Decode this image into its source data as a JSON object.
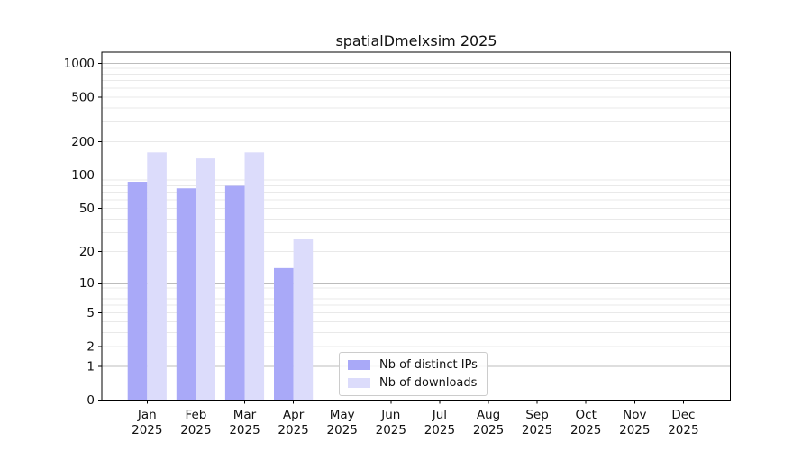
{
  "title": "spatialDmelxsim 2025",
  "chart_data": {
    "type": "bar",
    "title": "spatialDmelxsim 2025",
    "x_months": [
      "Jan",
      "Feb",
      "Mar",
      "Apr",
      "May",
      "Jun",
      "Jul",
      "Aug",
      "Sep",
      "Oct",
      "Nov",
      "Dec"
    ],
    "x_year": "2025",
    "y_ticks": [
      0,
      1,
      2,
      5,
      10,
      20,
      50,
      100,
      200,
      500,
      1000
    ],
    "y_scale": "log1p",
    "ylim": [
      0,
      1270
    ],
    "grid": true,
    "legend_position": "lower-center",
    "series": [
      {
        "name": "Nb of distinct IPs",
        "color": "#a9a9f8",
        "values": [
          87,
          76,
          80,
          14,
          0,
          0,
          0,
          0,
          0,
          0,
          0,
          0
        ]
      },
      {
        "name": "Nb of downloads",
        "color": "#dcdcfb",
        "values": [
          160,
          141,
          160,
          26,
          0,
          0,
          0,
          0,
          0,
          0,
          0,
          0
        ]
      }
    ],
    "grid_major_color": "#bcbcbc",
    "grid_minor_color": "#e9e9e9",
    "axis_color": "#000000",
    "text_color": "#111111"
  }
}
